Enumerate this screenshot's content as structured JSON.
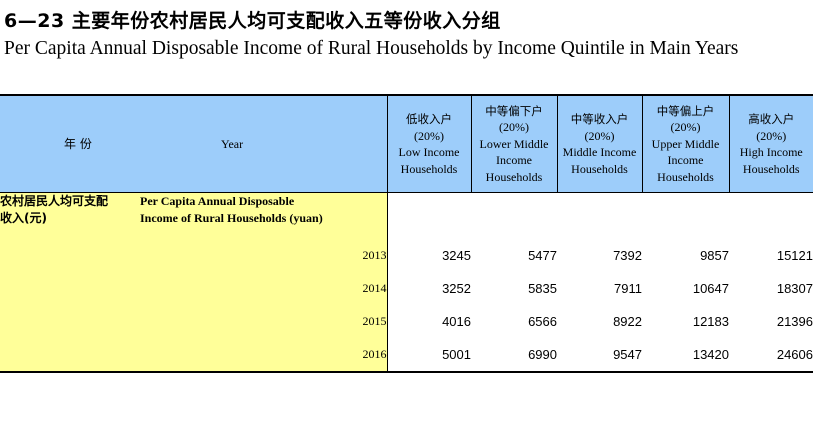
{
  "title_cn": "6—23  主要年份农村居民人均可支配收入五等份收入分组",
  "title_en": "Per Capita Annual Disposable Income of Rural Households by Income Quintile in Main Years",
  "header": {
    "year_cn": "年  份",
    "year_en": "Year",
    "columns": [
      {
        "cn": "低收入户",
        "pct": "(20%)",
        "en1": "Low Income",
        "en2": "Households",
        "en3": ""
      },
      {
        "cn": "中等偏下户",
        "pct": "(20%)",
        "en1": "Lower Middle",
        "en2": "Income",
        "en3": "Households"
      },
      {
        "cn": "中等收入户",
        "pct": "(20%)",
        "en1": "Middle Income",
        "en2": "Households",
        "en3": ""
      },
      {
        "cn": "中等偏上户",
        "pct": "(20%)",
        "en1": "Upper Middle",
        "en2": "Income",
        "en3": "Households"
      },
      {
        "cn": "高收入户",
        "pct": "(20%)",
        "en1": "High Income",
        "en2": "Households",
        "en3": ""
      }
    ]
  },
  "section": {
    "label_cn_1": "农村居民人均可支配",
    "label_cn_2": "收入(元)",
    "label_en_1": "Per Capita Annual Disposable",
    "label_en_2": "Income of Rural  Households (yuan)"
  },
  "rows": [
    {
      "year": "2013",
      "values": [
        "3245",
        "5477",
        "7392",
        "9857",
        "15121"
      ]
    },
    {
      "year": "2014",
      "values": [
        "3252",
        "5835",
        "7911",
        "10647",
        "18307"
      ]
    },
    {
      "year": "2015",
      "values": [
        "4016",
        "6566",
        "8922",
        "12183",
        "21396"
      ]
    },
    {
      "year": "2016",
      "values": [
        "5001",
        "6990",
        "9547",
        "13420",
        "24606"
      ]
    }
  ],
  "colors": {
    "header_bg": "#9dcdfa",
    "stub_bg": "#ffff99"
  }
}
